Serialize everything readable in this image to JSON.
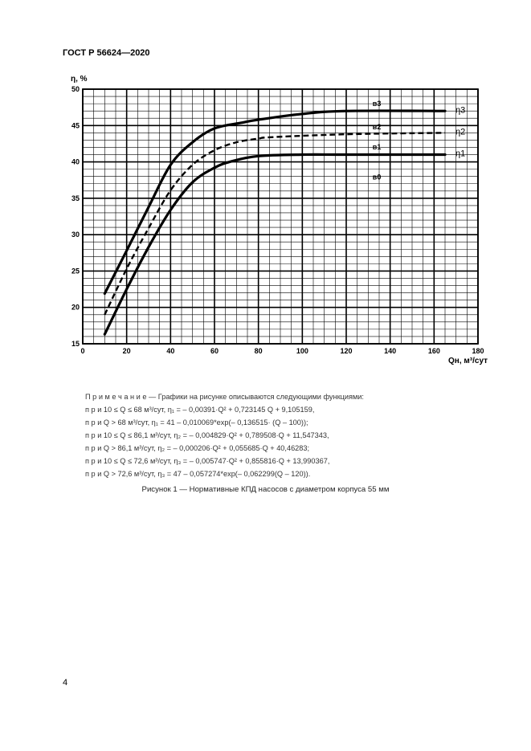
{
  "header": {
    "doc_id": "ГОСТ Р 56624—2020"
  },
  "chart_data": {
    "type": "line",
    "xlabel": "Qн, м³/сут",
    "ylabel": "η, %",
    "xlim": [
      0,
      180
    ],
    "ylim": [
      15,
      50
    ],
    "x_ticks": [
      0,
      20,
      40,
      60,
      80,
      100,
      120,
      140,
      160,
      180
    ],
    "y_ticks": [
      15,
      20,
      25,
      30,
      35,
      40,
      45,
      50
    ],
    "minor_grid_x": 5,
    "minor_grid_y": 1,
    "grid": true,
    "series": [
      {
        "name": "η1",
        "style": "solid",
        "values": [
          [
            10,
            16.3
          ],
          [
            20,
            22.5
          ],
          [
            30,
            28.3
          ],
          [
            40,
            33.4
          ],
          [
            50,
            37.2
          ],
          [
            60,
            39.2
          ],
          [
            68,
            40.1
          ],
          [
            80,
            40.8
          ],
          [
            100,
            41.0
          ],
          [
            120,
            41.0
          ],
          [
            165,
            41.0
          ]
        ]
      },
      {
        "name": "η2",
        "style": "dashed",
        "values": [
          [
            10,
            19.0
          ],
          [
            20,
            25.3
          ],
          [
            30,
            30.9
          ],
          [
            40,
            36.1
          ],
          [
            50,
            39.6
          ],
          [
            60,
            41.6
          ],
          [
            70,
            42.7
          ],
          [
            80,
            43.2
          ],
          [
            86,
            43.4
          ],
          [
            120,
            43.8
          ],
          [
            165,
            44.0
          ]
        ]
      },
      {
        "name": "η3",
        "style": "solid",
        "values": [
          [
            10,
            21.9
          ],
          [
            20,
            27.8
          ],
          [
            30,
            33.8
          ],
          [
            40,
            39.6
          ],
          [
            50,
            42.7
          ],
          [
            60,
            44.6
          ],
          [
            72.6,
            45.4
          ],
          [
            80,
            45.8
          ],
          [
            100,
            46.6
          ],
          [
            120,
            47.0
          ],
          [
            165,
            47.0
          ]
        ]
      }
    ],
    "annotations": [
      "в3",
      "в2",
      "в1",
      "в0"
    ],
    "series_labels": [
      "η3",
      "η2",
      "η1"
    ]
  },
  "note": {
    "title": "П р и м е ч а н и е  — Графики на рисунке описываются следующими функциями:",
    "lines": [
      "п р и   10 ≤ Q ≤ 68 м³/сут, η₁ = – 0,00391·Q² + 0,723145 Q + 9,105159,",
      "п р и   Q > 68 м³/сут, η₁ = 41 – 0,010069*exp(– 0,136515· (Q – 100));",
      "п р и   10 ≤ Q ≤ 86,1 м³/сут, η₂ = – 0,004829·Q² + 0,789508·Q + 11,547343,",
      "п р и   Q > 86,1 м³/сут, η₂ = – 0,000206·Q² + 0,055685·Q + 40,46283;",
      "п р и   10 ≤ Q ≤ 72,6 м³/сут, η₃ = – 0,005747·Q² + 0,855816·Q + 13,990367,",
      "п р и   Q > 72,6 м³/сут, η₃ = 47 – 0,057274*exp(– 0,062299(Q – 120))."
    ]
  },
  "caption": "Рисунок 1 — Нормативные КПД насосов с диаметром корпуса 55 мм",
  "page_number": "4"
}
